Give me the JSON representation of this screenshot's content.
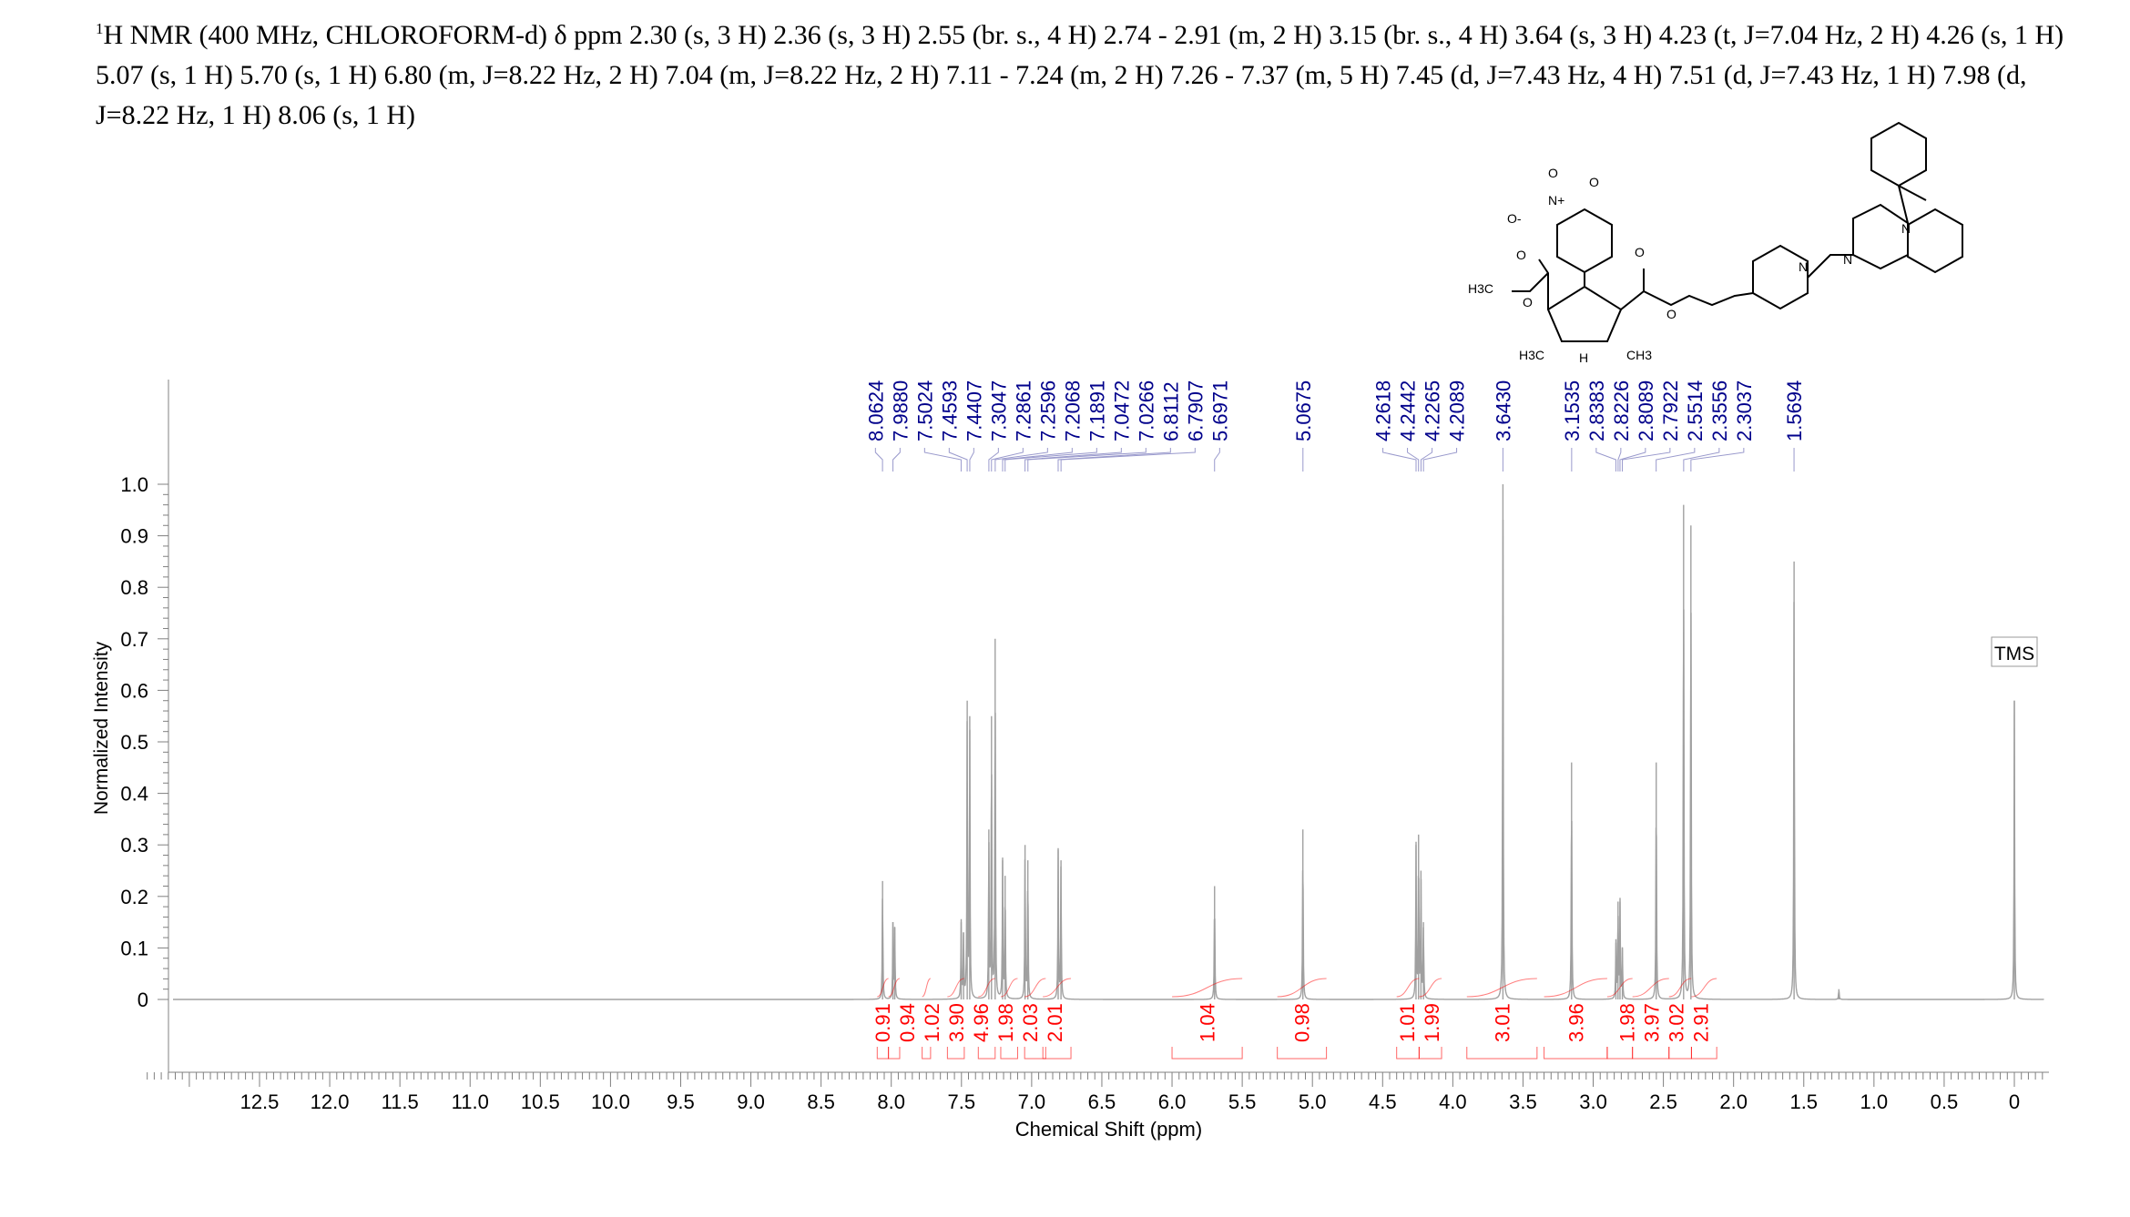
{
  "title": {
    "sup": "1",
    "text": "H NMR (400 MHz, CHLOROFORM-d) δ ppm 2.30 (s, 3 H) 2.36 (s, 3 H) 2.55 (br. s., 4 H) 2.74 - 2.91 (m, 2 H) 3.15 (br. s., 4 H) 3.64 (s, 3 H) 4.23 (t, J=7.04 Hz, 2 H) 4.26 (s, 1 H) 5.07 (s, 1 H) 5.70 (s, 1 H) 6.80 (m, J=8.22 Hz, 2 H) 7.04 (m, J=8.22 Hz, 2 H) 7.11 - 7.24 (m, 2 H) 7.26 - 7.37 (m, 5 H) 7.45 (d, J=7.43 Hz, 4 H) 7.51 (d, J=7.43 Hz, 1 H) 7.98 (d, J=8.22 Hz, 1 H) 8.06 (s, 1 H)"
  },
  "structure_labels": [
    "O",
    "N+",
    "O-",
    "O",
    "O",
    "H3C",
    "O",
    "O",
    "O",
    "N",
    "N",
    "N",
    "H",
    "H3C",
    "CH3"
  ],
  "chart_data": {
    "type": "line",
    "xlabel": "Chemical Shift (ppm)",
    "ylabel": "Normalized Intensity",
    "xlim": [
      13.3,
      -0.25
    ],
    "ylim": [
      -0.13,
      1.2
    ],
    "xticks": [
      "12.5",
      "12.0",
      "11.5",
      "11.0",
      "10.5",
      "10.0",
      "9.5",
      "9.0",
      "8.5",
      "8.0",
      "7.5",
      "7.0",
      "6.5",
      "6.0",
      "5.5",
      "5.0",
      "4.5",
      "4.0",
      "3.5",
      "3.0",
      "2.5",
      "2.0",
      "1.5",
      "1.0",
      "0.5",
      "0"
    ],
    "yticks": [
      "0",
      "0.1",
      "0.2",
      "0.3",
      "0.4",
      "0.5",
      "0.6",
      "0.7",
      "0.8",
      "0.9",
      "1.0"
    ],
    "peaks": [
      [
        8.062,
        0.23
      ],
      [
        7.988,
        0.15
      ],
      [
        7.975,
        0.14
      ],
      [
        7.502,
        0.15
      ],
      [
        7.485,
        0.13
      ],
      [
        7.459,
        0.58
      ],
      [
        7.441,
        0.55
      ],
      [
        7.305,
        0.33
      ],
      [
        7.286,
        0.55
      ],
      [
        7.26,
        0.7
      ],
      [
        7.207,
        0.27
      ],
      [
        7.189,
        0.24
      ],
      [
        7.047,
        0.3
      ],
      [
        7.027,
        0.27
      ],
      [
        6.811,
        0.29
      ],
      [
        6.791,
        0.27
      ],
      [
        5.697,
        0.22
      ],
      [
        5.068,
        0.33
      ],
      [
        4.262,
        0.3
      ],
      [
        4.244,
        0.32
      ],
      [
        4.227,
        0.25
      ],
      [
        4.209,
        0.15
      ],
      [
        3.643,
        1.0
      ],
      [
        3.154,
        0.46
      ],
      [
        2.838,
        0.11
      ],
      [
        2.823,
        0.19
      ],
      [
        2.809,
        0.19
      ],
      [
        2.792,
        0.1
      ],
      [
        2.551,
        0.46
      ],
      [
        2.356,
        0.96
      ],
      [
        2.304,
        0.92
      ],
      [
        1.569,
        0.85
      ],
      [
        1.25,
        0.02
      ],
      [
        0.0,
        0.58
      ]
    ],
    "peak_labels": [
      "8.0624",
      "7.9880",
      "7.5024",
      "7.4593",
      "7.4407",
      "7.3047",
      "7.2861",
      "7.2596",
      "7.2068",
      "7.1891",
      "7.0472",
      "7.0266",
      "6.8112",
      "6.7907",
      "5.6971",
      "5.0675",
      "4.2618",
      "4.2442",
      "4.2265",
      "4.2089",
      "3.6430",
      "3.1535",
      "2.8383",
      "2.8226",
      "2.8089",
      "2.7922",
      "2.5514",
      "2.3556",
      "2.3037",
      "1.5694"
    ],
    "integrals": [
      {
        "label": "0.91",
        "from": 8.1,
        "to": 8.02
      },
      {
        "label": "0.94",
        "from": 8.02,
        "to": 7.94
      },
      {
        "label": "1.02",
        "from": 7.78,
        "to": 7.72
      },
      {
        "label": "3.90",
        "from": 7.6,
        "to": 7.48
      },
      {
        "label": "4.96",
        "from": 7.38,
        "to": 7.26
      },
      {
        "label": "1.98",
        "from": 7.22,
        "to": 7.1
      },
      {
        "label": "2.03",
        "from": 7.05,
        "to": 6.9
      },
      {
        "label": "2.01",
        "from": 6.92,
        "to": 6.72
      },
      {
        "label": "1.04",
        "from": 6.0,
        "to": 5.5
      },
      {
        "label": "0.98",
        "from": 5.25,
        "to": 4.9
      },
      {
        "label": "1.01",
        "from": 4.4,
        "to": 4.24
      },
      {
        "label": "1.99",
        "from": 4.24,
        "to": 4.08
      },
      {
        "label": "3.01",
        "from": 3.9,
        "to": 3.4
      },
      {
        "label": "3.96",
        "from": 3.35,
        "to": 2.9
      },
      {
        "label": "1.98",
        "from": 2.9,
        "to": 2.72
      },
      {
        "label": "3.97",
        "from": 2.72,
        "to": 2.46
      },
      {
        "label": "3.02",
        "from": 2.46,
        "to": 2.3
      },
      {
        "label": "2.91",
        "from": 2.3,
        "to": 2.12
      }
    ],
    "annotation": "TMS",
    "colors": {
      "spectrum": "#a0a0a0",
      "peak_label": "#00008b",
      "integral": "#ff0000",
      "axis": "#808080"
    }
  }
}
